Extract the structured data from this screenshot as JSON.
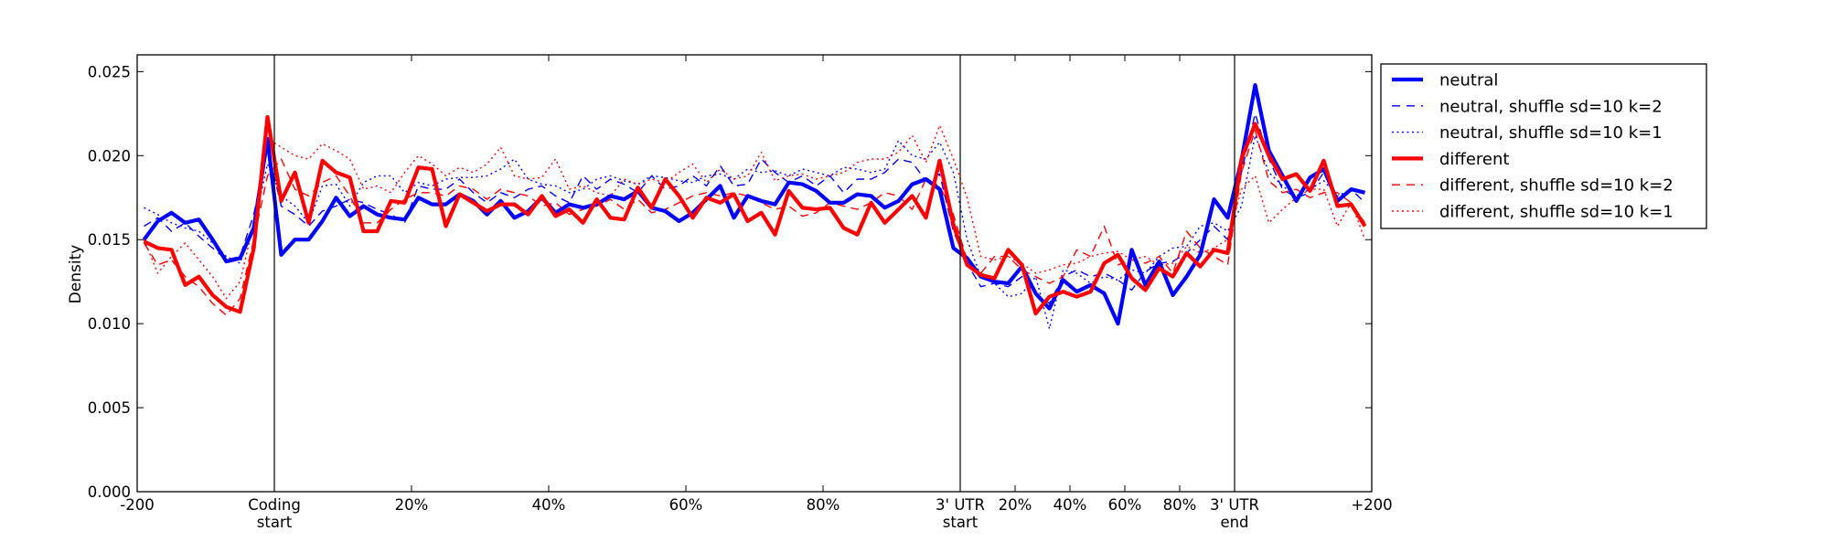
{
  "chart_data": {
    "type": "line",
    "title": "",
    "xlabel": "",
    "ylabel": "Density",
    "ylim": [
      0,
      0.026
    ],
    "xlim": [
      0,
      9
    ],
    "yticks": [
      {
        "value": 0.0,
        "label": "0.000"
      },
      {
        "value": 0.005,
        "label": "0.005"
      },
      {
        "value": 0.01,
        "label": "0.010"
      },
      {
        "value": 0.015,
        "label": "0.015"
      },
      {
        "value": 0.02,
        "label": "0.020"
      },
      {
        "value": 0.025,
        "label": "0.025"
      }
    ],
    "xticks": [
      {
        "value": 0,
        "label": "-200",
        "label2": ""
      },
      {
        "value": 1,
        "label": "Coding",
        "label2": "start"
      },
      {
        "value": 2,
        "label": "20%",
        "label2": ""
      },
      {
        "value": 3,
        "label": "40%",
        "label2": ""
      },
      {
        "value": 4,
        "label": "60%",
        "label2": ""
      },
      {
        "value": 5,
        "label": "80%",
        "label2": ""
      },
      {
        "value": 6,
        "label": "3' UTR",
        "label2": "start"
      },
      {
        "value": 6.4,
        "label": "20%",
        "label2": ""
      },
      {
        "value": 6.8,
        "label": "40%",
        "label2": ""
      },
      {
        "value": 7.2,
        "label": "60%",
        "label2": ""
      },
      {
        "value": 7.6,
        "label": "80%",
        "label2": ""
      },
      {
        "value": 8,
        "label": "3' UTR",
        "label2": "end"
      },
      {
        "value": 9,
        "label": "+200",
        "label2": ""
      }
    ],
    "vlines": [
      1,
      6,
      8
    ],
    "x_note": "90 bins; bin k centered at (k+0.5)/10 in region units (upstream 0-1, CDS 1-6, 3'UTR 6-8, downstream 8-9)",
    "legend_position": "outside-right-top",
    "series": [
      {
        "name": "neutral",
        "color": "#0000ff",
        "style": "solid",
        "width": "thick",
        "values": [
          0.015,
          0.0161,
          0.0166,
          0.016,
          0.0162,
          0.015,
          0.0137,
          0.0139,
          0.0157,
          0.021,
          0.0141,
          0.015,
          0.015,
          0.0161,
          0.0175,
          0.0164,
          0.017,
          0.0165,
          0.0163,
          0.0162,
          0.0175,
          0.0171,
          0.0171,
          0.0177,
          0.0173,
          0.0165,
          0.0173,
          0.0163,
          0.0167,
          0.0175,
          0.0166,
          0.0171,
          0.0169,
          0.0171,
          0.0176,
          0.0174,
          0.0179,
          0.0169,
          0.0167,
          0.0161,
          0.0166,
          0.0174,
          0.0182,
          0.0163,
          0.0176,
          0.0173,
          0.0171,
          0.0184,
          0.0183,
          0.0179,
          0.0172,
          0.0172,
          0.0177,
          0.0176,
          0.0169,
          0.0173,
          0.0183,
          0.0186,
          0.018,
          0.0145,
          0.0139,
          0.0128,
          0.0125,
          0.0124,
          0.0134,
          0.0118,
          0.0109,
          0.0126,
          0.0119,
          0.0123,
          0.0118,
          0.01,
          0.0144,
          0.0123,
          0.0137,
          0.0117,
          0.0128,
          0.0141,
          0.0174,
          0.0163,
          0.0197,
          0.0242,
          0.0203,
          0.0188,
          0.0173,
          0.0187,
          0.0192,
          0.0173,
          0.018,
          0.0178
        ]
      },
      {
        "name": "neutral, shuffle sd=10 k=2",
        "color": "#0000ff",
        "style": "dashed",
        "width": "thin",
        "values": [
          0.0158,
          0.0163,
          0.0155,
          0.016,
          0.0152,
          0.0145,
          0.0138,
          0.014,
          0.0165,
          0.0205,
          0.017,
          0.0165,
          0.0158,
          0.0167,
          0.017,
          0.0174,
          0.0172,
          0.0168,
          0.0165,
          0.016,
          0.0182,
          0.018,
          0.018,
          0.0186,
          0.0178,
          0.0172,
          0.0178,
          0.0175,
          0.018,
          0.0182,
          0.0176,
          0.0172,
          0.0188,
          0.018,
          0.0186,
          0.0183,
          0.0178,
          0.0188,
          0.018,
          0.0182,
          0.0188,
          0.0182,
          0.0194,
          0.0182,
          0.0183,
          0.0198,
          0.019,
          0.0184,
          0.0188,
          0.0182,
          0.0188,
          0.0178,
          0.0186,
          0.0186,
          0.019,
          0.0198,
          0.0196,
          0.0185,
          0.0189,
          0.0155,
          0.0136,
          0.0122,
          0.0124,
          0.0122,
          0.0128,
          0.0118,
          0.0112,
          0.0128,
          0.0132,
          0.0128,
          0.013,
          0.0126,
          0.012,
          0.0131,
          0.0136,
          0.0137,
          0.0142,
          0.015,
          0.0158,
          0.015,
          0.019,
          0.0225,
          0.0198,
          0.018,
          0.0175,
          0.0178,
          0.019,
          0.0172,
          0.018,
          0.0172
        ]
      },
      {
        "name": "neutral, shuffle sd=10 k=1",
        "color": "#0000ff",
        "style": "dotted",
        "width": "thin",
        "values": [
          0.0169,
          0.0165,
          0.016,
          0.0157,
          0.0155,
          0.0148,
          0.014,
          0.0136,
          0.0158,
          0.0195,
          0.0176,
          0.017,
          0.016,
          0.0182,
          0.0183,
          0.017,
          0.0184,
          0.0188,
          0.0188,
          0.0178,
          0.0184,
          0.0182,
          0.0186,
          0.0187,
          0.0187,
          0.0188,
          0.0192,
          0.0198,
          0.0186,
          0.0183,
          0.0182,
          0.0178,
          0.018,
          0.0186,
          0.0188,
          0.0185,
          0.0183,
          0.0188,
          0.0187,
          0.0185,
          0.0184,
          0.0188,
          0.0189,
          0.0186,
          0.0192,
          0.019,
          0.0191,
          0.0188,
          0.0192,
          0.019,
          0.0188,
          0.0193,
          0.0192,
          0.019,
          0.0192,
          0.0209,
          0.02,
          0.0198,
          0.0208,
          0.019,
          0.015,
          0.0128,
          0.0124,
          0.0116,
          0.0118,
          0.0128,
          0.0097,
          0.0132,
          0.013,
          0.0124,
          0.0128,
          0.0126,
          0.0132,
          0.013,
          0.014,
          0.0145,
          0.0146,
          0.0158,
          0.016,
          0.0155,
          0.017,
          0.0212,
          0.019,
          0.0182,
          0.0176,
          0.018,
          0.0185,
          0.0176,
          0.018,
          0.0178
        ]
      },
      {
        "name": "different",
        "color": "#ff0000",
        "style": "solid",
        "width": "thick",
        "values": [
          0.0149,
          0.0145,
          0.0144,
          0.0123,
          0.0128,
          0.0117,
          0.011,
          0.0107,
          0.0145,
          0.0223,
          0.0173,
          0.019,
          0.016,
          0.0197,
          0.019,
          0.0187,
          0.0155,
          0.0155,
          0.0173,
          0.0172,
          0.0193,
          0.0192,
          0.0158,
          0.0177,
          0.0172,
          0.0167,
          0.0171,
          0.0171,
          0.0165,
          0.0176,
          0.0164,
          0.0168,
          0.016,
          0.0174,
          0.0163,
          0.0162,
          0.0181,
          0.0169,
          0.0186,
          0.0176,
          0.0163,
          0.0175,
          0.0172,
          0.0177,
          0.0161,
          0.0166,
          0.0153,
          0.0179,
          0.0169,
          0.0168,
          0.0169,
          0.0157,
          0.0153,
          0.0172,
          0.016,
          0.0168,
          0.0176,
          0.0163,
          0.0197,
          0.0159,
          0.0135,
          0.0129,
          0.0127,
          0.0144,
          0.0135,
          0.0106,
          0.0116,
          0.0119,
          0.0116,
          0.0119,
          0.0136,
          0.0141,
          0.0127,
          0.012,
          0.0133,
          0.0128,
          0.0142,
          0.0134,
          0.0144,
          0.0142,
          0.0198,
          0.0219,
          0.02,
          0.0186,
          0.0189,
          0.0179,
          0.0197,
          0.017,
          0.0171,
          0.0158
        ]
      },
      {
        "name": "different, shuffle sd=10 k=2",
        "color": "#ff0000",
        "style": "dashed",
        "width": "thin",
        "values": [
          0.0148,
          0.0135,
          0.0138,
          0.0128,
          0.0122,
          0.0112,
          0.0105,
          0.0115,
          0.015,
          0.0188,
          0.0198,
          0.018,
          0.0176,
          0.0184,
          0.0188,
          0.0176,
          0.016,
          0.016,
          0.0168,
          0.0174,
          0.0178,
          0.0178,
          0.0176,
          0.0182,
          0.018,
          0.0174,
          0.018,
          0.0178,
          0.0176,
          0.017,
          0.0172,
          0.0165,
          0.0168,
          0.017,
          0.0174,
          0.0168,
          0.0174,
          0.0166,
          0.0168,
          0.0172,
          0.0176,
          0.0178,
          0.0176,
          0.0178,
          0.0176,
          0.0172,
          0.0168,
          0.017,
          0.0164,
          0.0166,
          0.0172,
          0.017,
          0.0168,
          0.0172,
          0.0178,
          0.0176,
          0.0168,
          0.0186,
          0.0182,
          0.0165,
          0.0138,
          0.013,
          0.014,
          0.014,
          0.0132,
          0.0128,
          0.0124,
          0.0128,
          0.0144,
          0.014,
          0.0158,
          0.0135,
          0.0138,
          0.0136,
          0.014,
          0.013,
          0.0155,
          0.0145,
          0.014,
          0.0135,
          0.019,
          0.0215,
          0.0185,
          0.0178,
          0.018,
          0.0175,
          0.0178,
          0.0178,
          0.0172,
          0.016
        ]
      },
      {
        "name": "different, shuffle sd=10 k=1",
        "color": "#ff0000",
        "style": "dotted",
        "width": "thin",
        "values": [
          0.015,
          0.013,
          0.014,
          0.0148,
          0.0138,
          0.0128,
          0.0115,
          0.0125,
          0.016,
          0.021,
          0.0205,
          0.02,
          0.0198,
          0.0207,
          0.0203,
          0.0198,
          0.018,
          0.0182,
          0.0178,
          0.019,
          0.02,
          0.0195,
          0.0188,
          0.0193,
          0.019,
          0.0195,
          0.0205,
          0.0188,
          0.0186,
          0.0187,
          0.0198,
          0.018,
          0.0182,
          0.0178,
          0.0176,
          0.0186,
          0.0183,
          0.0186,
          0.0184,
          0.019,
          0.0195,
          0.0184,
          0.0192,
          0.0186,
          0.0188,
          0.0202,
          0.0185,
          0.0188,
          0.0189,
          0.0186,
          0.0188,
          0.019,
          0.0196,
          0.0198,
          0.0198,
          0.0202,
          0.0212,
          0.0196,
          0.0218,
          0.0198,
          0.0175,
          0.014,
          0.0138,
          0.014,
          0.0136,
          0.013,
          0.0132,
          0.0135,
          0.0136,
          0.014,
          0.0142,
          0.0143,
          0.0138,
          0.014,
          0.0135,
          0.0136,
          0.0146,
          0.0142,
          0.0145,
          0.015,
          0.018,
          0.0188,
          0.016,
          0.0168,
          0.0175,
          0.018,
          0.018,
          0.0158,
          0.0172,
          0.015
        ]
      }
    ]
  }
}
